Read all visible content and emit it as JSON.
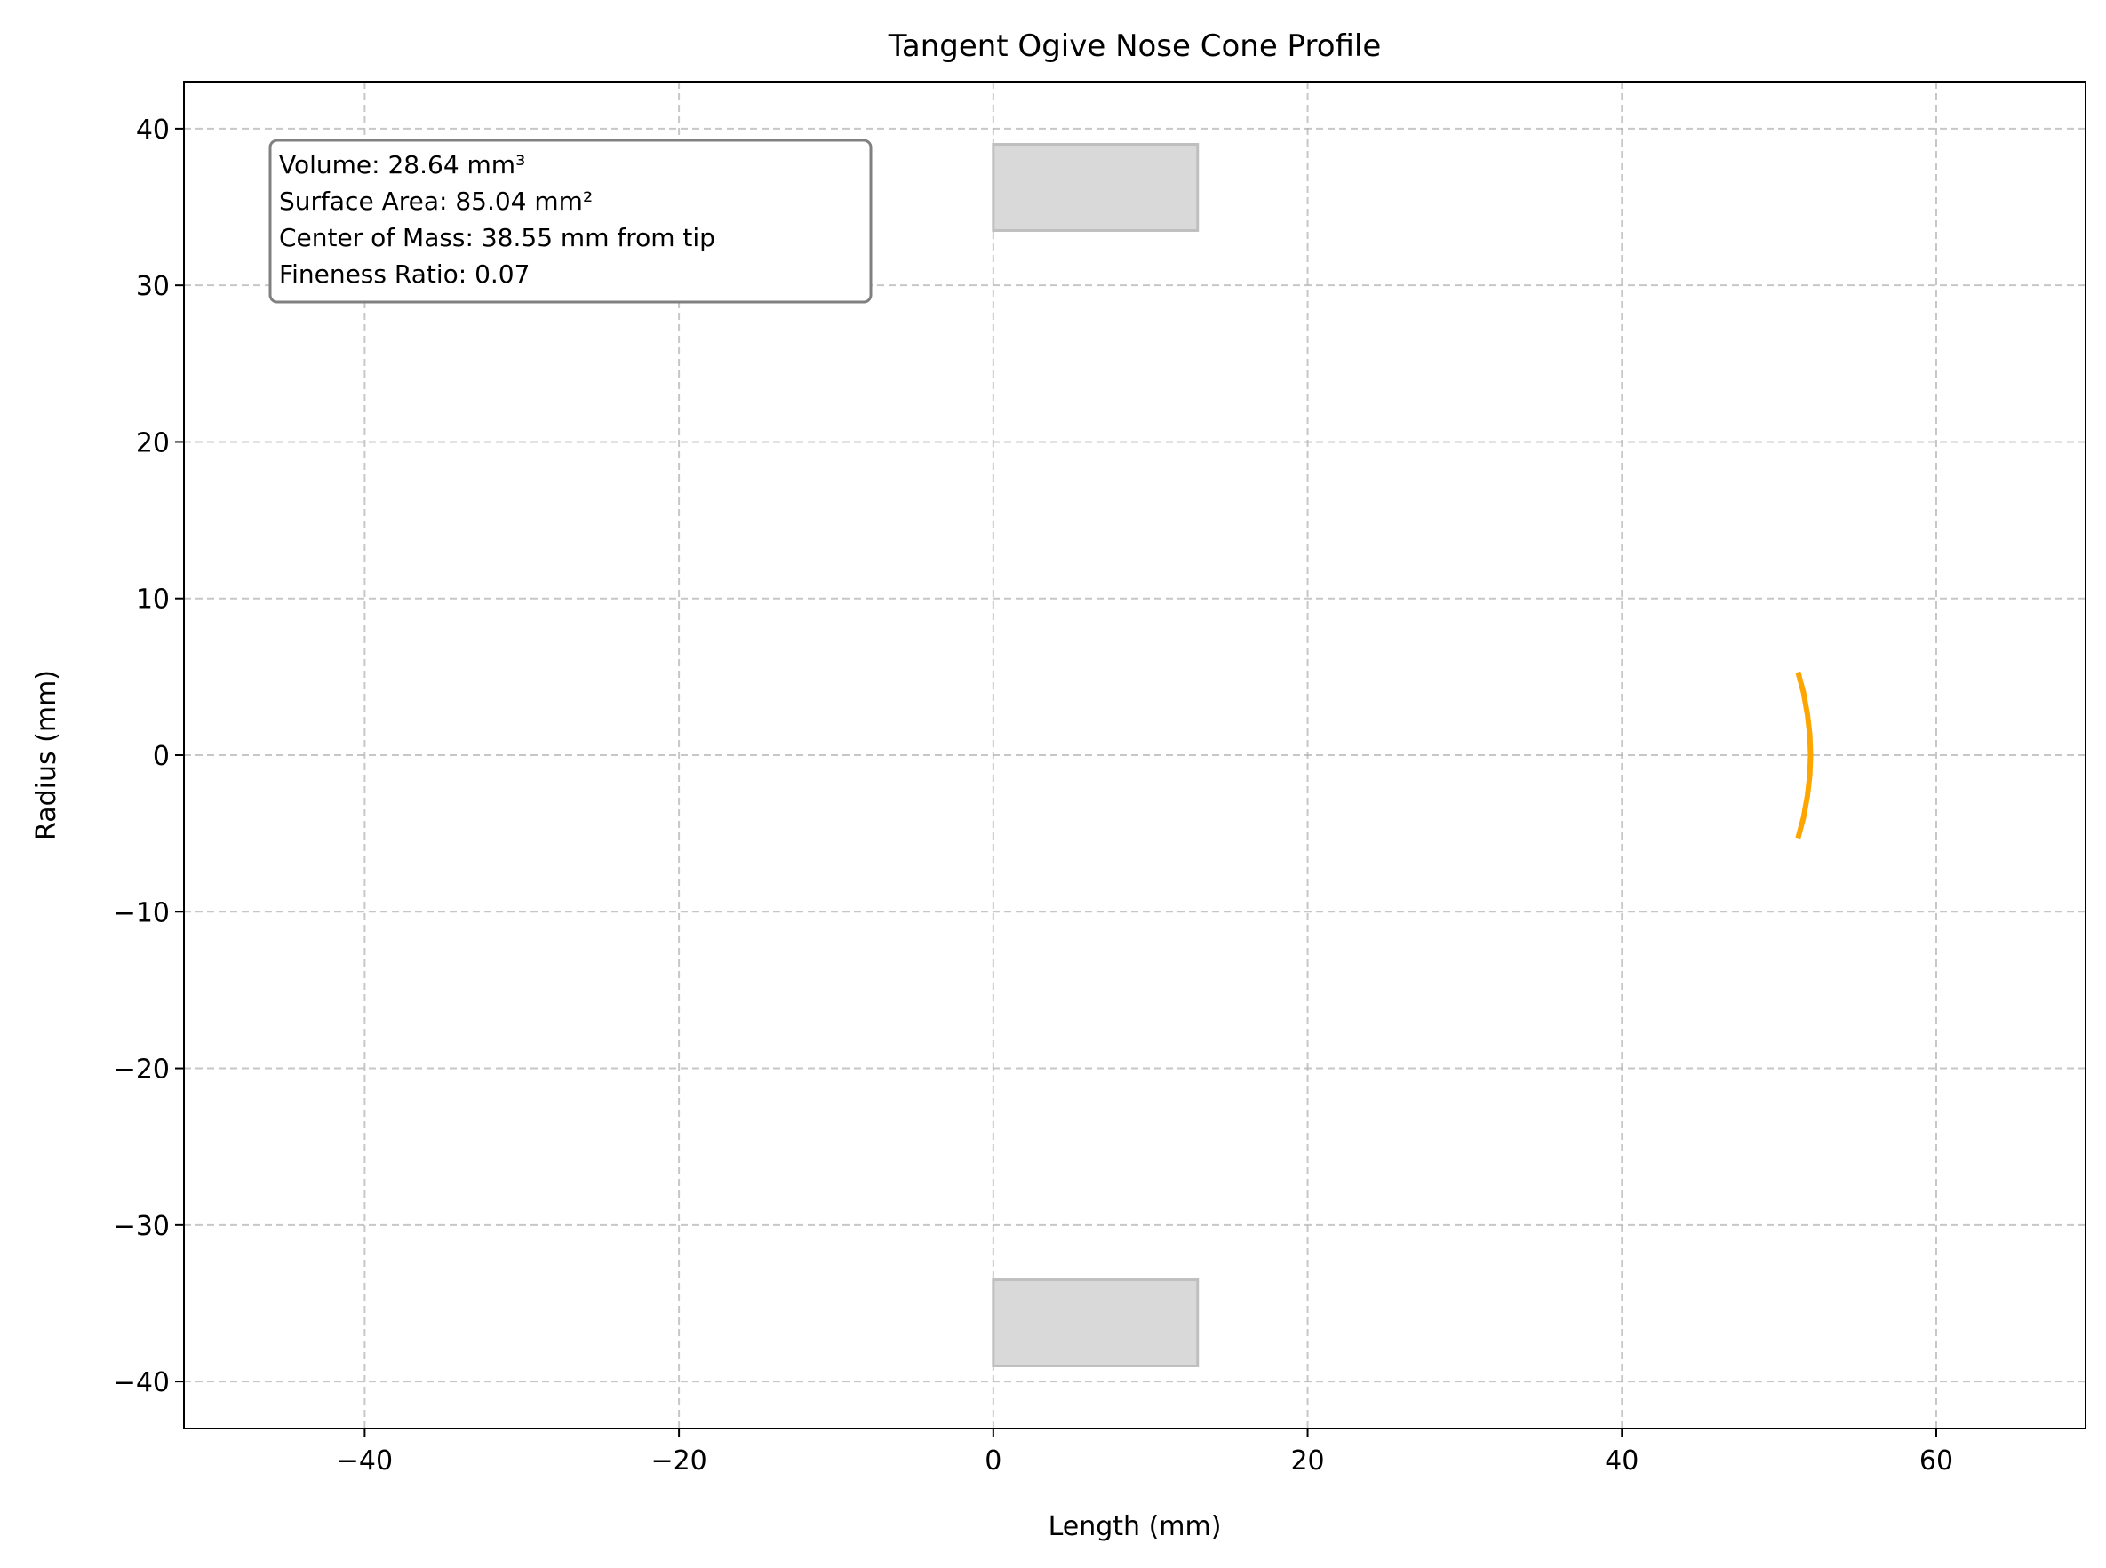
{
  "chart_data": {
    "type": "line",
    "title": "Tangent Ogive Nose Cone Profile",
    "xlabel": "Length (mm)",
    "ylabel": "Radius (mm)",
    "xlim": [
      -51.5,
      69.5
    ],
    "ylim": [
      -43,
      43
    ],
    "xticks": [
      -40,
      -20,
      0,
      20,
      40,
      60
    ],
    "yticks": [
      -40,
      -30,
      -20,
      -10,
      0,
      10,
      20,
      30,
      40
    ],
    "xtick_labels": [
      "−40",
      "−20",
      "0",
      "20",
      "40",
      "60"
    ],
    "ytick_labels": [
      "−40",
      "−30",
      "−20",
      "−10",
      "0",
      "10",
      "20",
      "30",
      "40"
    ],
    "grid": true,
    "grid_style": "dashed",
    "series": [
      {
        "color": "#ffa500",
        "x": [
          51.2,
          51.55,
          51.8,
          51.95,
          52.0,
          51.95,
          51.8,
          51.55,
          51.2
        ],
        "y": [
          -5.3,
          -4.0,
          -2.6,
          -1.3,
          0.0,
          1.3,
          2.6,
          4.0,
          5.3
        ]
      }
    ],
    "regions": [
      {
        "x0": 0,
        "x1": 13,
        "y0": 33.5,
        "y1": 39,
        "color": "#d9d9d9"
      },
      {
        "x0": 0,
        "x1": 13,
        "y0": -39,
        "y1": -33.5,
        "color": "#d9d9d9"
      }
    ],
    "annotation": {
      "lines": [
        "Volume: 28.64 mm³",
        "Surface Area: 85.04 mm²",
        "Center of Mass: 38.55 mm from tip",
        "Fineness Ratio: 0.07"
      ],
      "placement": "top-left"
    }
  }
}
